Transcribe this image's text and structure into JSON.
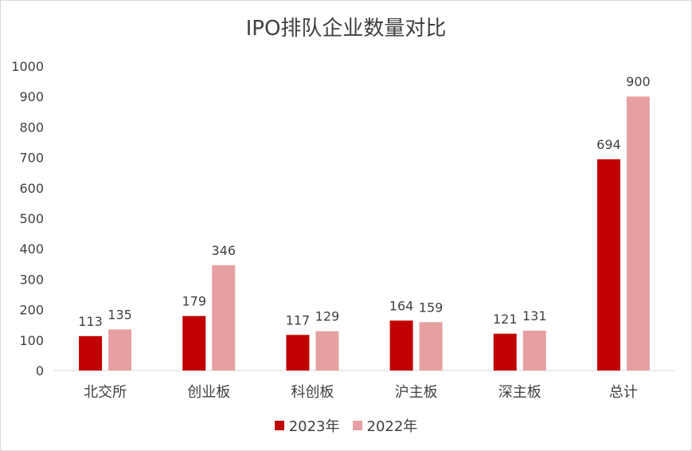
{
  "chart_data": {
    "type": "bar",
    "title": "IPO排队企业数量对比",
    "categories": [
      "北交所",
      "创业板",
      "科创板",
      "沪主板",
      "深主板",
      "总计"
    ],
    "series": [
      {
        "name": "2023年",
        "color": "#c00000",
        "values": [
          113,
          179,
          117,
          164,
          121,
          694
        ]
      },
      {
        "name": "2022年",
        "color": "#e6a0a2",
        "values": [
          135,
          346,
          129,
          159,
          131,
          900
        ]
      }
    ],
    "ylim": [
      0,
      1000
    ],
    "yticks": [
      0,
      100,
      200,
      300,
      400,
      500,
      600,
      700,
      800,
      900,
      1000
    ],
    "grid": false,
    "legend": "bottom"
  }
}
